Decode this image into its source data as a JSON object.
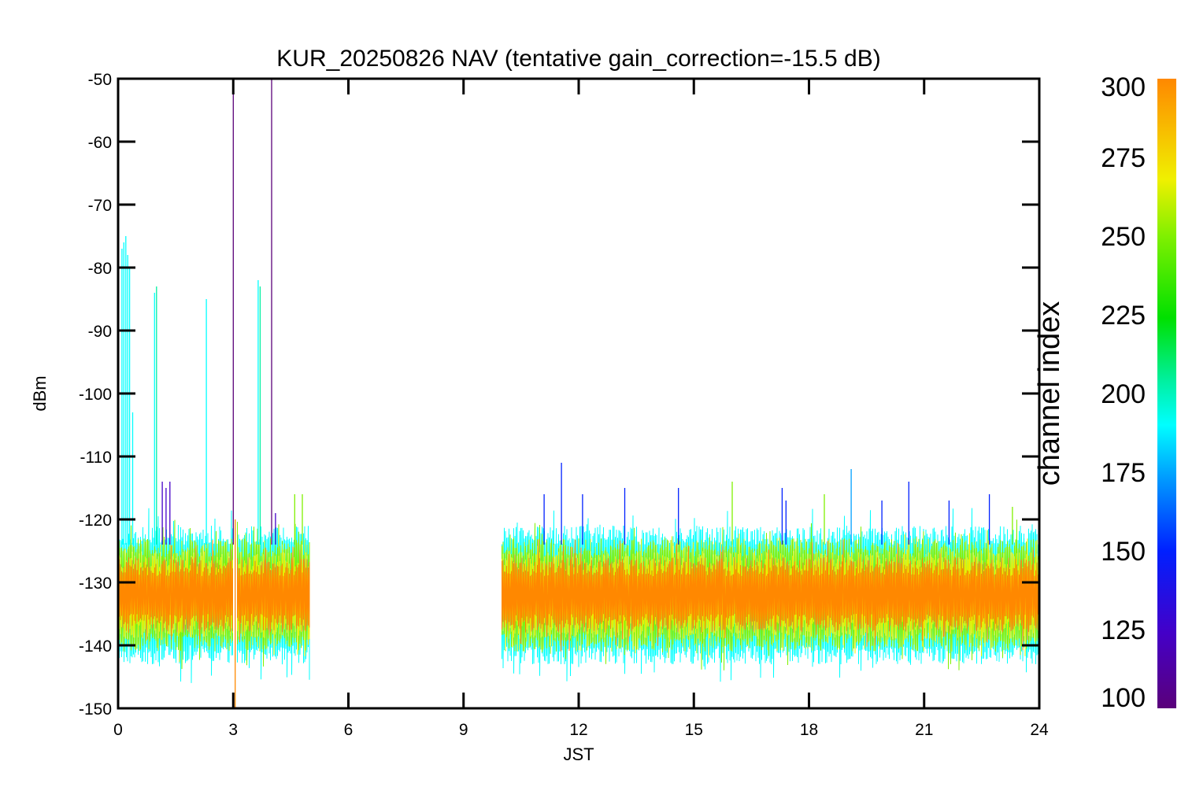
{
  "chart_data": {
    "type": "line",
    "title": "KUR_20250826 NAV (tentative gain_correction=-15.5 dB)",
    "xlabel": "JST",
    "ylabel": "dBm",
    "xlim": [
      0,
      24
    ],
    "ylim": [
      -150,
      -50
    ],
    "xticks": [
      0,
      3,
      6,
      9,
      12,
      15,
      18,
      21,
      24
    ],
    "xtick_labels": [
      "0",
      "3",
      "6",
      "9",
      "12",
      "15",
      "18",
      "21",
      "24"
    ],
    "yticks": [
      -150,
      -140,
      -130,
      -120,
      -110,
      -100,
      -90,
      -80,
      -70,
      -60,
      -50
    ],
    "ytick_labels": [
      "-150",
      "-140",
      "-130",
      "-120",
      "-110",
      "-100",
      "-90",
      "-80",
      "-70",
      "-60",
      "-50"
    ],
    "grid": false,
    "colorbar": {
      "title": "channel index",
      "range": [
        100,
        300
      ],
      "ticks": [
        100,
        125,
        150,
        175,
        200,
        225,
        250,
        275,
        300
      ],
      "tick_labels": [
        "100",
        "125",
        "150",
        "175",
        "200",
        "225",
        "250",
        "275",
        "300"
      ]
    },
    "segments": [
      {
        "x_start": 0.0,
        "x_end": 5.0
      },
      {
        "x_start": 10.0,
        "x_end": 24.0
      }
    ],
    "gaps": [
      {
        "x_start": 3.0,
        "x_end": 3.1
      },
      {
        "x_start": 5.0,
        "x_end": 10.0
      }
    ],
    "bands": [
      {
        "channel": 290,
        "y_low": -138,
        "y_high": -126
      },
      {
        "channel": 270,
        "y_low": -139,
        "y_high": -125
      },
      {
        "channel": 245,
        "y_low": -141,
        "y_high": -123
      },
      {
        "channel": 190,
        "y_low": -143,
        "y_high": -121
      }
    ],
    "spikes": [
      {
        "x": 0.1,
        "y_top": -77,
        "channel": 190
      },
      {
        "x": 0.15,
        "y_top": -76,
        "channel": 195
      },
      {
        "x": 0.2,
        "y_top": -75,
        "channel": 190
      },
      {
        "x": 0.25,
        "y_top": -78,
        "channel": 195
      },
      {
        "x": 0.3,
        "y_top": -80,
        "channel": 192
      },
      {
        "x": 0.38,
        "y_top": -103,
        "channel": 195
      },
      {
        "x": 0.95,
        "y_top": -84,
        "channel": 195
      },
      {
        "x": 1.0,
        "y_top": -83,
        "channel": 200
      },
      {
        "x": 1.15,
        "y_top": -114,
        "channel": 130
      },
      {
        "x": 1.25,
        "y_top": -115,
        "channel": 130
      },
      {
        "x": 1.35,
        "y_top": -114,
        "channel": 130
      },
      {
        "x": 2.3,
        "y_top": -85,
        "channel": 195
      },
      {
        "x": 3.0,
        "y_top": -50,
        "channel": 110
      },
      {
        "x": 3.05,
        "y_top": -150,
        "channel": 290
      },
      {
        "x": 3.65,
        "y_top": -82,
        "channel": 195
      },
      {
        "x": 3.7,
        "y_top": -83,
        "channel": 200
      },
      {
        "x": 4.0,
        "y_top": -50,
        "channel": 110
      },
      {
        "x": 4.1,
        "y_top": -119,
        "channel": 130
      },
      {
        "x": 4.6,
        "y_top": -116,
        "channel": 250
      },
      {
        "x": 4.8,
        "y_top": -116,
        "channel": 255
      },
      {
        "x": 11.1,
        "y_top": -116,
        "channel": 140
      },
      {
        "x": 11.55,
        "y_top": -111,
        "channel": 140
      },
      {
        "x": 12.1,
        "y_top": -116,
        "channel": 145
      },
      {
        "x": 13.2,
        "y_top": -115,
        "channel": 145
      },
      {
        "x": 14.6,
        "y_top": -115,
        "channel": 150
      },
      {
        "x": 16.0,
        "y_top": -114,
        "channel": 260
      },
      {
        "x": 17.3,
        "y_top": -115,
        "channel": 140
      },
      {
        "x": 17.4,
        "y_top": -117,
        "channel": 145
      },
      {
        "x": 18.4,
        "y_top": -116,
        "channel": 265
      },
      {
        "x": 19.1,
        "y_top": -112,
        "channel": 175
      },
      {
        "x": 19.9,
        "y_top": -117,
        "channel": 145
      },
      {
        "x": 20.6,
        "y_top": -114,
        "channel": 150
      },
      {
        "x": 21.65,
        "y_top": -117,
        "channel": 140
      },
      {
        "x": 22.7,
        "y_top": -116,
        "channel": 145
      },
      {
        "x": 23.3,
        "y_top": -118,
        "channel": 250
      },
      {
        "x": 23.6,
        "y_top": -123,
        "channel": 180
      }
    ]
  },
  "colors": {
    "colormap": [
      "#5a007a",
      "#4400c8",
      "#0020ff",
      "#00a0ff",
      "#00ffff",
      "#00f0a0",
      "#00e000",
      "#80f000",
      "#f0f000",
      "#ff8800"
    ]
  }
}
